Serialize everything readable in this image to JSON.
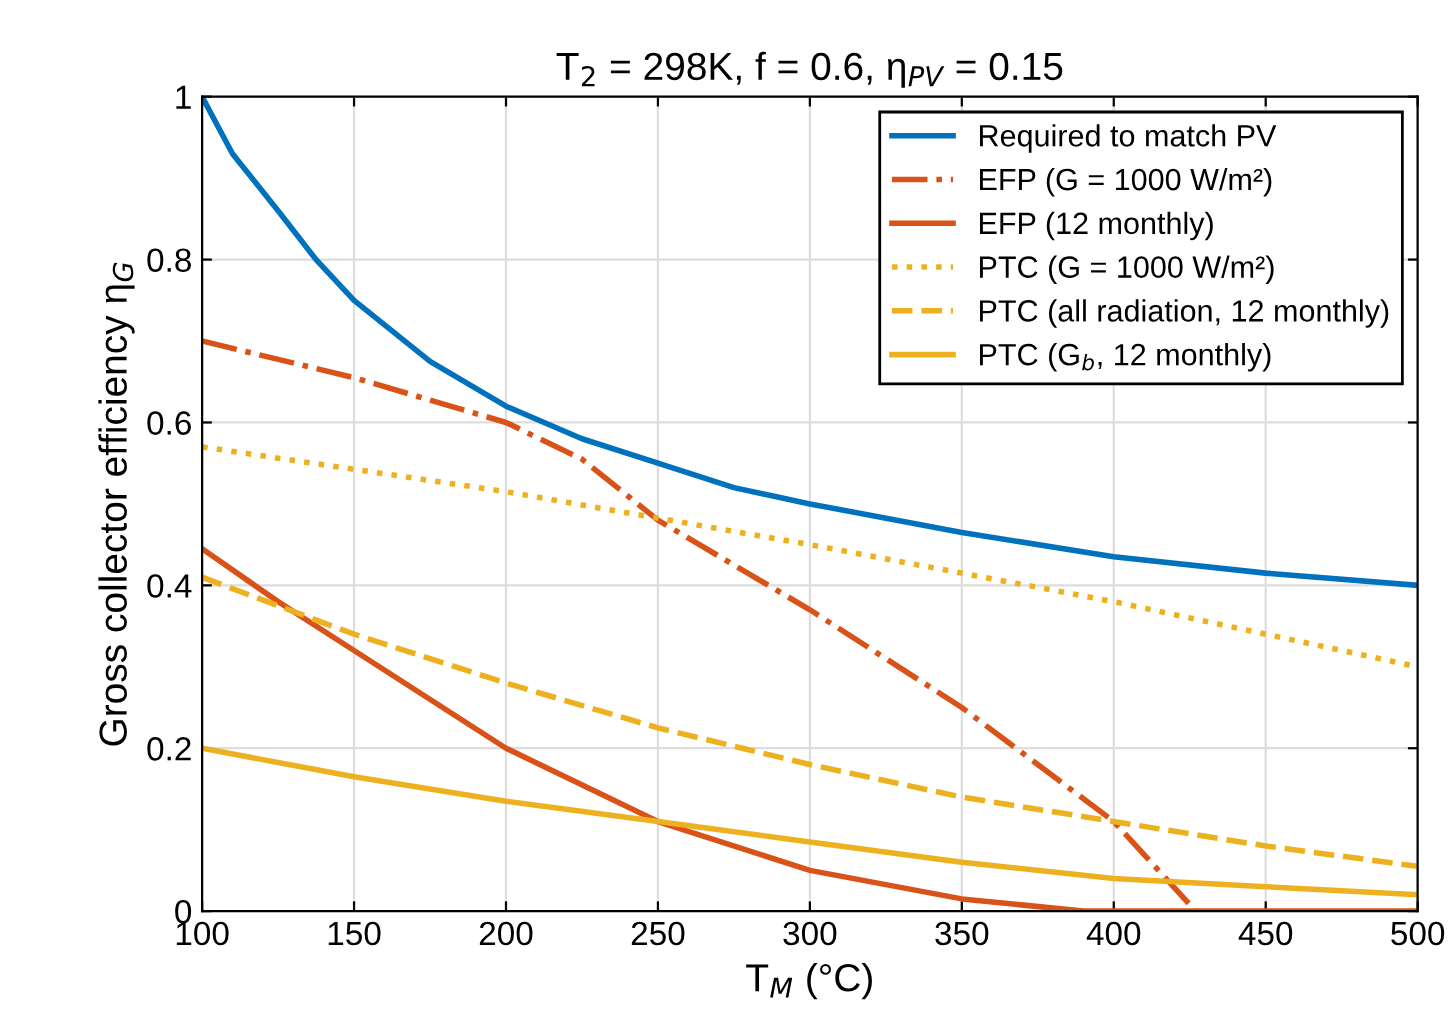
{
  "chart_data": {
    "type": "line",
    "title": "T$_{2}$ = 298K, f = 0.6, η$_{PV}$ = 0.15",
    "xlabel": "T$_{M}$ (°C)",
    "ylabel": "Gross collector efficiency η$_{G}$",
    "xlim": [
      100,
      500
    ],
    "ylim": [
      0,
      1
    ],
    "xticks": [
      100,
      150,
      200,
      250,
      300,
      350,
      400,
      450,
      500
    ],
    "yticks": [
      0,
      0.2,
      0.4,
      0.6,
      0.8,
      1
    ],
    "grid": true,
    "legend": "top right",
    "marker": "none",
    "series": [
      {
        "name": "Required to match PV",
        "color": "#0072bd",
        "line_style": "solid",
        "x": [
          100,
          110,
          125,
          137.5,
          150,
          175,
          200,
          225,
          250,
          275,
          300,
          350,
          400,
          450,
          500
        ],
        "values": [
          1.0,
          0.93,
          0.86,
          0.8,
          0.75,
          0.675,
          0.62,
          0.58,
          0.55,
          0.52,
          0.5,
          0.465,
          0.435,
          0.415,
          0.4
        ]
      },
      {
        "name": "EFP (G = 1000 W/m²)",
        "color": "#d95319",
        "line_style": "dashdot",
        "x": [
          100,
          150,
          200,
          225,
          250,
          300,
          350,
          400,
          427
        ],
        "values": [
          0.7,
          0.655,
          0.6,
          0.555,
          0.48,
          0.37,
          0.25,
          0.11,
          0.0
        ]
      },
      {
        "name": "EFP (12 monthly)",
        "color": "#d95319",
        "line_style": "solid",
        "x": [
          100,
          125,
          150,
          200,
          250,
          300,
          350,
          390,
          500
        ],
        "values": [
          0.445,
          0.38,
          0.32,
          0.2,
          0.11,
          0.05,
          0.015,
          0.0,
          0.0
        ]
      },
      {
        "name": "PTC (G = 1000 W/m²)",
        "color": "#edb120",
        "line_style": "dotted",
        "x": [
          100,
          200,
          300,
          400,
          500
        ],
        "values": [
          0.57,
          0.515,
          0.45,
          0.38,
          0.3
        ]
      },
      {
        "name": "PTC (all radiation, 12 monthly)",
        "color": "#edb120",
        "line_style": "dashed",
        "x": [
          100,
          150,
          200,
          250,
          300,
          350,
          400,
          450,
          500
        ],
        "values": [
          0.41,
          0.34,
          0.28,
          0.225,
          0.18,
          0.14,
          0.11,
          0.08,
          0.055
        ]
      },
      {
        "name": "PTC (G$_{b}$, 12 monthly)",
        "color": "#edb120",
        "line_style": "solid",
        "x": [
          100,
          150,
          200,
          250,
          300,
          350,
          400,
          450,
          500
        ],
        "values": [
          0.2,
          0.165,
          0.135,
          0.11,
          0.085,
          0.06,
          0.04,
          0.03,
          0.02
        ]
      }
    ]
  }
}
